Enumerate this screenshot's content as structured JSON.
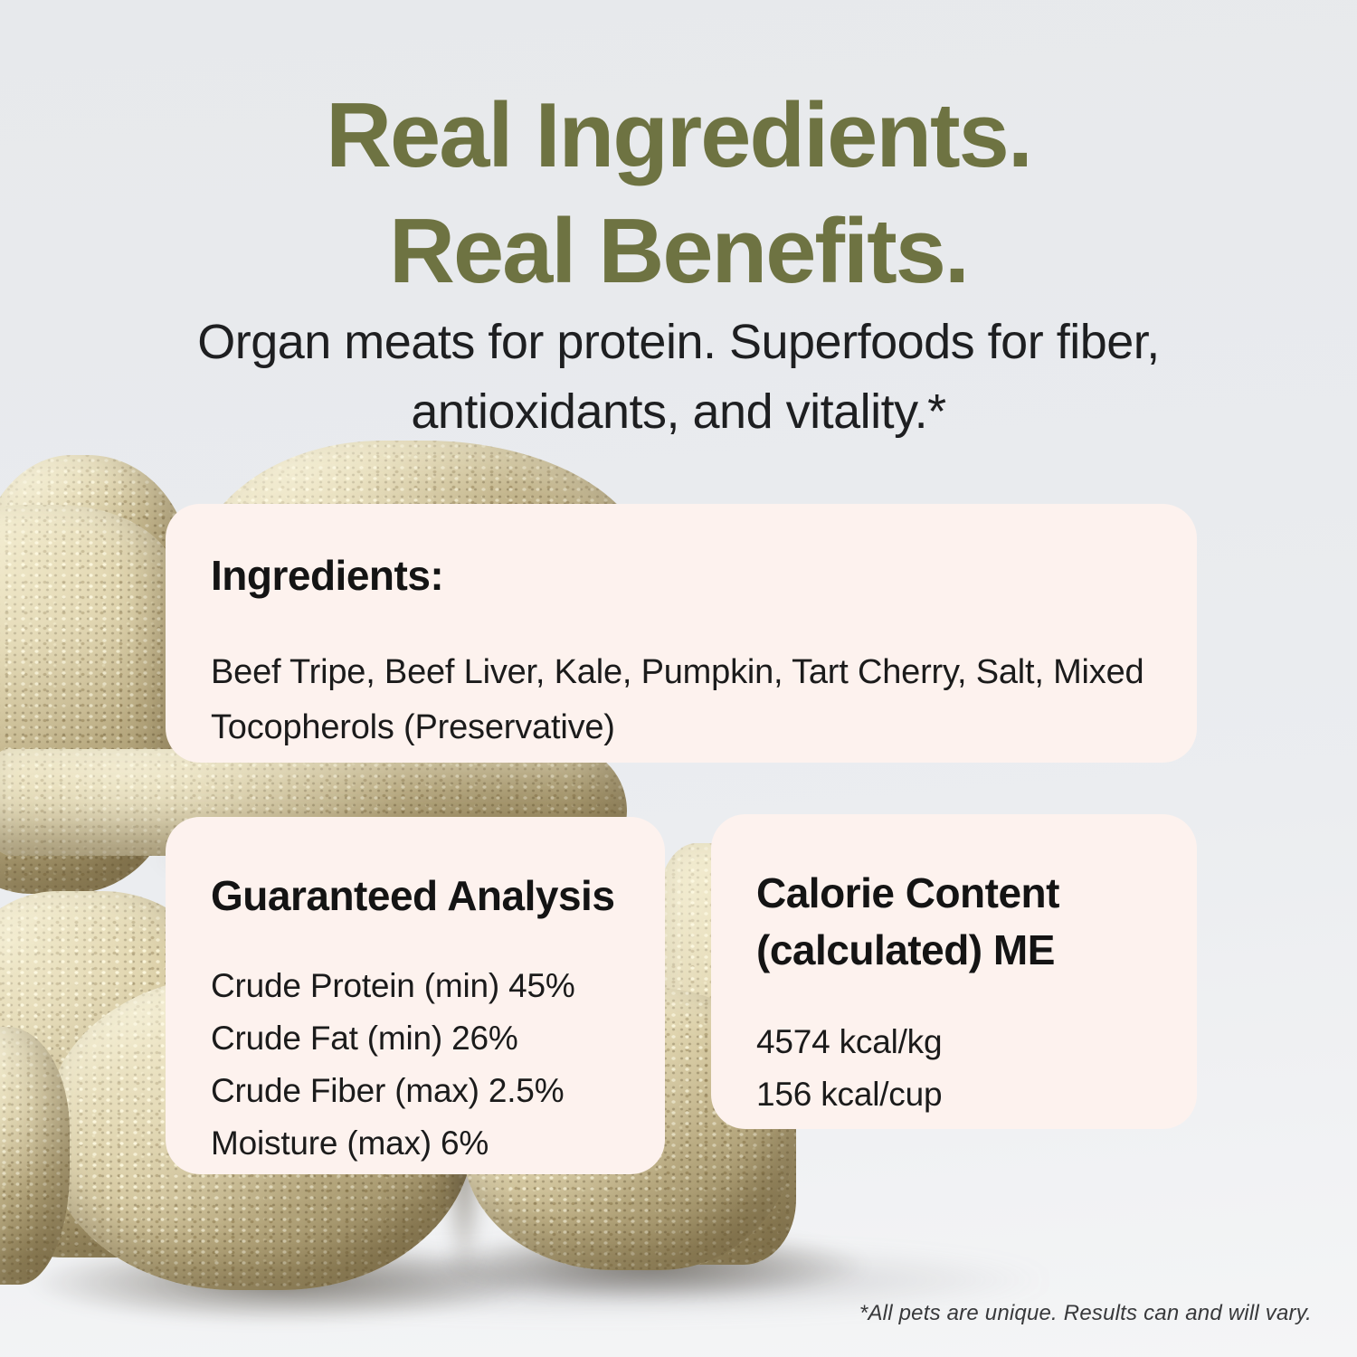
{
  "page": {
    "headline_line1": "Real Ingredients.",
    "headline_line2": "Real Benefits.",
    "subtitle": "Organ meats for protein. Superfoods for fiber, antioxidants, and vitality.*",
    "footnote": "*All pets are unique. Results can and will vary."
  },
  "colors": {
    "headline_green": "#6e7342",
    "card_background": "#fdf2ee",
    "page_background": "#e9ebee",
    "body_text": "#1b1b1b",
    "treat_beige": "#d2c49a"
  },
  "photo": {
    "alt": "Pile of crumbly freeze-dried treat cubes on a light grey backdrop"
  },
  "cards": {
    "ingredients": {
      "title": "Ingredients:",
      "body": "Beef Tripe, Beef Liver, Kale, Pumpkin, Tart Cherry, Salt, Mixed Tocopherols (Preservative)"
    },
    "guaranteed_analysis": {
      "title": "Guaranteed Analysis",
      "rows": [
        "Crude Protein (min) 45%",
        "Crude Fat (min) 26%",
        "Crude Fiber (max) 2.5%",
        "Moisture (max) 6%"
      ]
    },
    "calorie_content": {
      "title": "Calorie Content (calculated) ME",
      "rows": [
        "4574 kcal/kg",
        "156 kcal/cup"
      ]
    }
  }
}
